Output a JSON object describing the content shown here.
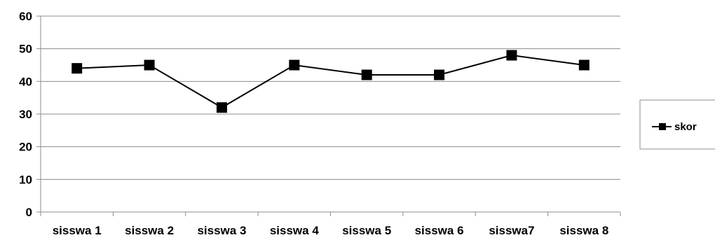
{
  "chart_data": {
    "type": "line",
    "categories": [
      "sisswa 1",
      "sisswa 2",
      "sisswa 3",
      "sisswa 4",
      "sisswa 5",
      "sisswa 6",
      "sisswa7",
      "sisswa 8"
    ],
    "series": [
      {
        "name": "skor",
        "values": [
          44,
          45,
          32,
          45,
          42,
          42,
          48,
          45
        ],
        "color": "#000000",
        "marker": "square"
      }
    ],
    "ylim": [
      0,
      60
    ],
    "yticks": [
      0,
      10,
      20,
      30,
      40,
      50,
      60
    ],
    "grid": true,
    "legend": "right"
  }
}
